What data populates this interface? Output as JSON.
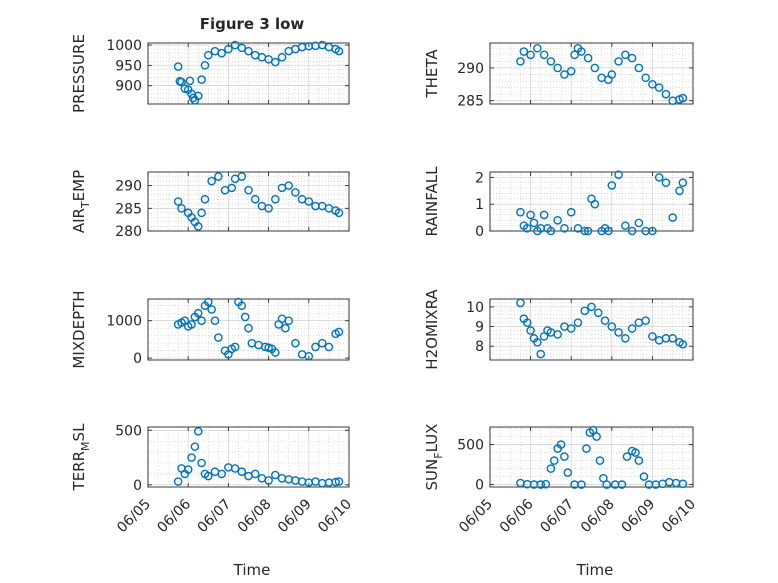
{
  "figure": {
    "title": "Figure 3 low",
    "xlabel": "Time",
    "date_ticks": [
      "06/05",
      "06/06",
      "06/07",
      "06/08",
      "06/09",
      "06/10"
    ]
  },
  "colors": {
    "marker": "#0072BD",
    "axes": "#262626",
    "grid": "#c8c8c8",
    "background": "#ffffff"
  },
  "chart_data": [
    {
      "type": "scatter",
      "ylabel_main": "PRESSURE",
      "ylabel_sub": "",
      "xlim": [
        "06/05",
        "06/10"
      ],
      "ylim": [
        855,
        1005
      ],
      "yticks": [
        900,
        950,
        1000
      ],
      "x": [
        "06/05 18:00",
        "06/05 19:00",
        "06/05 20:00",
        "06/05 22:00",
        "06/06 00:00",
        "06/06 01:00",
        "06/06 02:00",
        "06/06 03:00",
        "06/06 04:00",
        "06/06 06:00",
        "06/06 08:00",
        "06/06 10:00",
        "06/06 12:00",
        "06/06 16:00",
        "06/06 20:00",
        "06/07 00:00",
        "06/07 04:00",
        "06/07 08:00",
        "06/07 12:00",
        "06/07 16:00",
        "06/07 20:00",
        "06/08 00:00",
        "06/08 04:00",
        "06/08 08:00",
        "06/08 12:00",
        "06/08 16:00",
        "06/08 20:00",
        "06/09 00:00",
        "06/09 04:00",
        "06/09 08:00",
        "06/09 12:00",
        "06/09 16:00",
        "06/09 18:00"
      ],
      "values": [
        947,
        911,
        909,
        893,
        890,
        912,
        880,
        870,
        864,
        875,
        915,
        950,
        975,
        985,
        980,
        990,
        1000,
        993,
        985,
        975,
        970,
        965,
        958,
        970,
        985,
        990,
        995,
        997,
        998,
        1000,
        995,
        990,
        985
      ]
    },
    {
      "type": "scatter",
      "ylabel_main": "THETA",
      "ylabel_sub": "",
      "xlim": [
        "06/05",
        "06/10"
      ],
      "ylim": [
        284.5,
        293.8
      ],
      "yticks": [
        285,
        290
      ],
      "x": [
        "06/05 18:00",
        "06/05 20:00",
        "06/06 00:00",
        "06/06 04:00",
        "06/06 08:00",
        "06/06 12:00",
        "06/06 16:00",
        "06/06 20:00",
        "06/07 00:00",
        "06/07 02:00",
        "06/07 04:00",
        "06/07 06:00",
        "06/07 10:00",
        "06/07 14:00",
        "06/07 18:00",
        "06/07 22:00",
        "06/08 00:00",
        "06/08 04:00",
        "06/08 08:00",
        "06/08 12:00",
        "06/08 16:00",
        "06/08 20:00",
        "06/09 00:00",
        "06/09 04:00",
        "06/09 08:00",
        "06/09 12:00",
        "06/09 16:00",
        "06/09 18:00"
      ],
      "values": [
        291,
        292.5,
        292,
        293,
        292,
        291,
        290,
        289,
        289.5,
        292,
        293,
        292.5,
        291.5,
        290,
        288.5,
        288.2,
        289,
        291,
        292,
        291.5,
        290,
        288.5,
        287.5,
        287,
        286,
        285,
        285.2,
        285.4
      ]
    },
    {
      "type": "scatter",
      "ylabel_main": "AIR",
      "ylabel_sub": "T",
      "ylabel_tail": "EMP",
      "xlim": [
        "06/05",
        "06/10"
      ],
      "ylim": [
        280,
        293
      ],
      "yticks": [
        280,
        285,
        290
      ],
      "x": [
        "06/05 18:00",
        "06/05 20:00",
        "06/06 00:00",
        "06/06 02:00",
        "06/06 04:00",
        "06/06 06:00",
        "06/06 08:00",
        "06/06 10:00",
        "06/06 14:00",
        "06/06 18:00",
        "06/06 22:00",
        "06/07 02:00",
        "06/07 04:00",
        "06/07 08:00",
        "06/07 12:00",
        "06/07 16:00",
        "06/07 20:00",
        "06/08 00:00",
        "06/08 04:00",
        "06/08 08:00",
        "06/08 12:00",
        "06/08 16:00",
        "06/08 20:00",
        "06/09 00:00",
        "06/09 04:00",
        "06/09 08:00",
        "06/09 12:00",
        "06/09 16:00",
        "06/09 18:00"
      ],
      "values": [
        286.5,
        285,
        284,
        283,
        282,
        281,
        284,
        287,
        291,
        292,
        289,
        289.5,
        291.5,
        292,
        289,
        287,
        285.5,
        285,
        287,
        289.5,
        290,
        288.5,
        287,
        286.5,
        285.5,
        285.5,
        285,
        284.5,
        284
      ]
    },
    {
      "type": "scatter",
      "ylabel_main": "RAINFALL",
      "ylabel_sub": "",
      "xlim": [
        "06/05",
        "06/10"
      ],
      "ylim": [
        0,
        2.2
      ],
      "yticks": [
        0,
        1,
        2
      ],
      "x": [
        "06/05 18:00",
        "06/05 20:00",
        "06/05 22:00",
        "06/06 00:00",
        "06/06 02:00",
        "06/06 04:00",
        "06/06 06:00",
        "06/06 08:00",
        "06/06 10:00",
        "06/06 12:00",
        "06/06 16:00",
        "06/06 20:00",
        "06/07 00:00",
        "06/07 04:00",
        "06/07 08:00",
        "06/07 10:00",
        "06/07 12:00",
        "06/07 14:00",
        "06/07 18:00",
        "06/07 20:00",
        "06/07 22:00",
        "06/08 00:00",
        "06/08 04:00",
        "06/08 08:00",
        "06/08 12:00",
        "06/08 16:00",
        "06/08 20:00",
        "06/09 00:00",
        "06/09 04:00",
        "06/09 08:00",
        "06/09 12:00",
        "06/09 16:00",
        "06/09 18:00"
      ],
      "values": [
        0.7,
        0.2,
        0.1,
        0.6,
        0.3,
        0,
        0.1,
        0.6,
        0.1,
        0,
        0.4,
        0.1,
        0.7,
        0.1,
        0,
        0,
        1.2,
        1.0,
        0,
        0.1,
        0,
        1.7,
        2.1,
        0.2,
        0,
        0.3,
        0,
        0,
        2.0,
        1.8,
        0.5,
        1.5,
        1.8
      ]
    },
    {
      "type": "scatter",
      "ylabel_main": "MIXDEPTH",
      "ylabel_sub": "",
      "xlim": [
        "06/05",
        "06/10"
      ],
      "ylim": [
        -50,
        1580
      ],
      "yticks": [
        0,
        1000
      ],
      "x": [
        "06/05 18:00",
        "06/05 20:00",
        "06/05 22:00",
        "06/06 00:00",
        "06/06 02:00",
        "06/06 04:00",
        "06/06 06:00",
        "06/06 08:00",
        "06/06 10:00",
        "06/06 12:00",
        "06/06 14:00",
        "06/06 16:00",
        "06/06 18:00",
        "06/06 22:00",
        "06/07 00:00",
        "06/07 02:00",
        "06/07 04:00",
        "06/07 06:00",
        "06/07 08:00",
        "06/07 10:00",
        "06/07 12:00",
        "06/07 14:00",
        "06/07 18:00",
        "06/07 22:00",
        "06/08 00:00",
        "06/08 02:00",
        "06/08 04:00",
        "06/08 06:00",
        "06/08 08:00",
        "06/08 10:00",
        "06/08 12:00",
        "06/08 16:00",
        "06/08 20:00",
        "06/09 00:00",
        "06/09 04:00",
        "06/09 08:00",
        "06/09 12:00",
        "06/09 16:00",
        "06/09 18:00"
      ],
      "values": [
        900,
        950,
        1000,
        850,
        900,
        1100,
        1200,
        1000,
        1400,
        1500,
        1300,
        1000,
        550,
        200,
        100,
        250,
        300,
        1500,
        1400,
        1100,
        800,
        400,
        350,
        300,
        280,
        250,
        150,
        900,
        1050,
        800,
        1000,
        400,
        100,
        50,
        300,
        400,
        300,
        650,
        700
      ]
    },
    {
      "type": "scatter",
      "ylabel_main": "H2OMIXRA",
      "ylabel_sub": "",
      "xlim": [
        "06/05",
        "06/10"
      ],
      "ylim": [
        7.3,
        10.4
      ],
      "yticks": [
        8,
        9,
        10
      ],
      "x": [
        "06/05 18:00",
        "06/05 20:00",
        "06/05 22:00",
        "06/06 00:00",
        "06/06 02:00",
        "06/06 04:00",
        "06/06 06:00",
        "06/06 08:00",
        "06/06 10:00",
        "06/06 12:00",
        "06/06 16:00",
        "06/06 20:00",
        "06/07 00:00",
        "06/07 04:00",
        "06/07 08:00",
        "06/07 12:00",
        "06/07 16:00",
        "06/07 20:00",
        "06/08 00:00",
        "06/08 04:00",
        "06/08 08:00",
        "06/08 12:00",
        "06/08 16:00",
        "06/08 20:00",
        "06/09 00:00",
        "06/09 04:00",
        "06/09 08:00",
        "06/09 12:00",
        "06/09 16:00",
        "06/09 18:00"
      ],
      "values": [
        10.2,
        9.4,
        9.2,
        8.8,
        8.4,
        8.2,
        7.6,
        8.5,
        8.8,
        8.7,
        8.6,
        9.0,
        8.9,
        9.2,
        9.8,
        10.0,
        9.7,
        9.3,
        9.0,
        8.7,
        8.4,
        8.9,
        9.2,
        9.3,
        8.5,
        8.3,
        8.4,
        8.4,
        8.2,
        8.1
      ]
    },
    {
      "type": "scatter",
      "ylabel_main": "TERR",
      "ylabel_sub": "M",
      "ylabel_tail": "SL",
      "xlim": [
        "06/05",
        "06/10"
      ],
      "ylim": [
        -20,
        530
      ],
      "yticks": [
        0,
        500
      ],
      "x": [
        "06/05 18:00",
        "06/05 20:00",
        "06/05 22:00",
        "06/06 00:00",
        "06/06 02:00",
        "06/06 04:00",
        "06/06 06:00",
        "06/06 08:00",
        "06/06 10:00",
        "06/06 12:00",
        "06/06 16:00",
        "06/06 20:00",
        "06/07 00:00",
        "06/07 04:00",
        "06/07 08:00",
        "06/07 12:00",
        "06/07 16:00",
        "06/07 20:00",
        "06/08 00:00",
        "06/08 04:00",
        "06/08 08:00",
        "06/08 12:00",
        "06/08 16:00",
        "06/08 20:00",
        "06/09 00:00",
        "06/09 04:00",
        "06/09 08:00",
        "06/09 12:00",
        "06/09 16:00",
        "06/09 18:00"
      ],
      "values": [
        30,
        150,
        100,
        140,
        250,
        350,
        490,
        200,
        100,
        80,
        120,
        100,
        160,
        150,
        120,
        80,
        100,
        60,
        40,
        90,
        60,
        50,
        40,
        30,
        20,
        30,
        15,
        20,
        25,
        30
      ]
    },
    {
      "type": "scatter",
      "ylabel_main": "SUN",
      "ylabel_sub": "F",
      "ylabel_tail": "LUX",
      "xlim": [
        "06/05",
        "06/10"
      ],
      "ylim": [
        -30,
        720
      ],
      "yticks": [
        0,
        500
      ],
      "x": [
        "06/05 18:00",
        "06/05 22:00",
        "06/06 02:00",
        "06/06 06:00",
        "06/06 09:00",
        "06/06 12:00",
        "06/06 14:00",
        "06/06 16:00",
        "06/06 18:00",
        "06/06 20:00",
        "06/06 22:00",
        "06/07 02:00",
        "06/07 06:00",
        "06/07 09:00",
        "06/07 11:00",
        "06/07 13:00",
        "06/07 15:00",
        "06/07 17:00",
        "06/07 19:00",
        "06/07 21:00",
        "06/08 02:00",
        "06/08 06:00",
        "06/08 09:00",
        "06/08 12:00",
        "06/08 14:00",
        "06/08 16:00",
        "06/08 19:00",
        "06/08 22:00",
        "06/09 02:00",
        "06/09 06:00",
        "06/09 10:00",
        "06/09 14:00",
        "06/09 18:00"
      ],
      "values": [
        20,
        5,
        0,
        0,
        5,
        200,
        300,
        450,
        500,
        350,
        150,
        0,
        0,
        450,
        650,
        680,
        600,
        300,
        80,
        0,
        0,
        0,
        350,
        420,
        400,
        300,
        100,
        0,
        0,
        10,
        30,
        20,
        10
      ]
    }
  ]
}
